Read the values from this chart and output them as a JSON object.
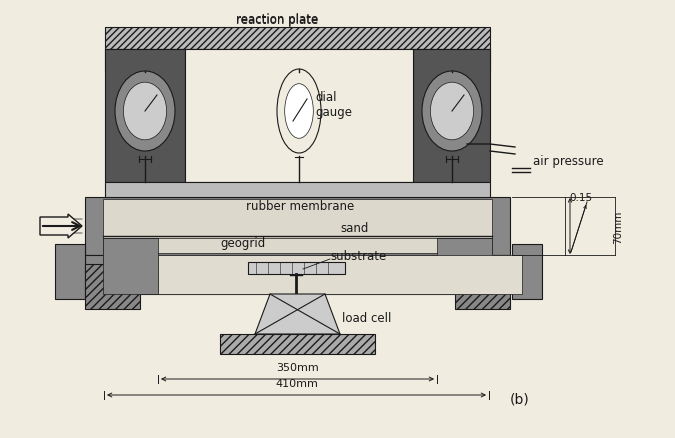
{
  "bg_color": "#f0ece0",
  "line_color": "#1a1a1a",
  "labels": {
    "reaction_plate": "reaction plate",
    "dial_gauge": "dial\ngauge",
    "air_pressure": "air pressure",
    "rubber_membrane": "rubber membrane",
    "sand": "sand",
    "geogrid": "geogrid",
    "substrate": "substrate",
    "load_cell": "load cell",
    "dim_350": "350mm",
    "dim_410": "410mm",
    "dim_70": "70mm",
    "dim_015": "0.15",
    "label_b": "(b)"
  },
  "figsize": [
    6.75,
    4.39
  ],
  "dpi": 100
}
